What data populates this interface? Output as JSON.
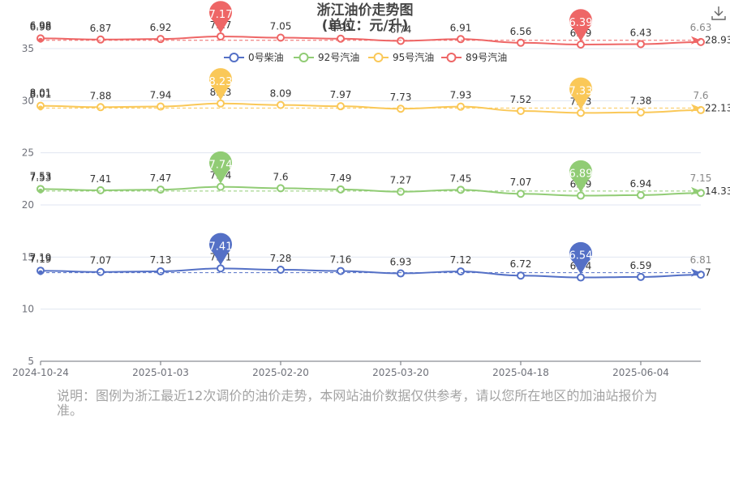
{
  "chart_data": {
    "type": "line",
    "title": "浙江油价走势图",
    "subtitle": "(单位：元/升)",
    "ylim": [
      5,
      35
    ],
    "yticks": [
      5,
      10,
      15,
      20,
      25,
      30,
      35
    ],
    "xticks": [
      "2024-10-24",
      "2025-01-03",
      "2025-02-20",
      "2025-03-20",
      "2025-04-18",
      "2025-06-04"
    ],
    "legend_position": "top-center",
    "grid": true,
    "series": [
      {
        "name": "0号柴油",
        "color": "#5470c6",
        "labels": [
          7.19,
          7.07,
          7.13,
          7.41,
          7.28,
          7.16,
          6.93,
          7.12,
          6.72,
          6.54,
          6.59,
          6.81
        ],
        "max_label": "7.41",
        "min_label": "6.54",
        "avg_label": "7",
        "start_marker_label": "7.19",
        "end_label": "6.81"
      },
      {
        "name": "92号汽油",
        "color": "#91cc75",
        "labels": [
          7.53,
          7.41,
          7.47,
          7.74,
          7.6,
          7.49,
          7.27,
          7.45,
          7.07,
          6.89,
          6.94,
          7.15
        ],
        "max_label": "7.74",
        "min_label": "6.89",
        "avg_label": "14.33",
        "start_marker_label": "7.53",
        "end_label": "7.15"
      },
      {
        "name": "95号汽油",
        "color": "#fac858",
        "labels": [
          8.01,
          7.88,
          7.94,
          8.23,
          8.09,
          7.97,
          7.73,
          7.93,
          7.52,
          7.33,
          7.38,
          7.6
        ],
        "max_label": "8.23",
        "min_label": "7.33",
        "avg_label": "22.13",
        "start_marker_label": "8.01",
        "end_label": "7.6"
      },
      {
        "name": "89号汽油",
        "color": "#ee6666",
        "labels": [
          6.98,
          6.87,
          6.92,
          7.17,
          7.05,
          6.95,
          6.74,
          6.91,
          6.56,
          6.39,
          6.43,
          6.63
        ],
        "max_label": "7.17",
        "min_label": "6.39",
        "avg_label": "28.93",
        "start_marker_label": "6.98",
        "end_label": "6.63"
      }
    ]
  },
  "note": "说明：图例为浙江最近12次调价的油价走势，本网站油价数据仅供参考，请以您所在地区的加油站报价为准。",
  "icons": {
    "download": "download-icon"
  }
}
